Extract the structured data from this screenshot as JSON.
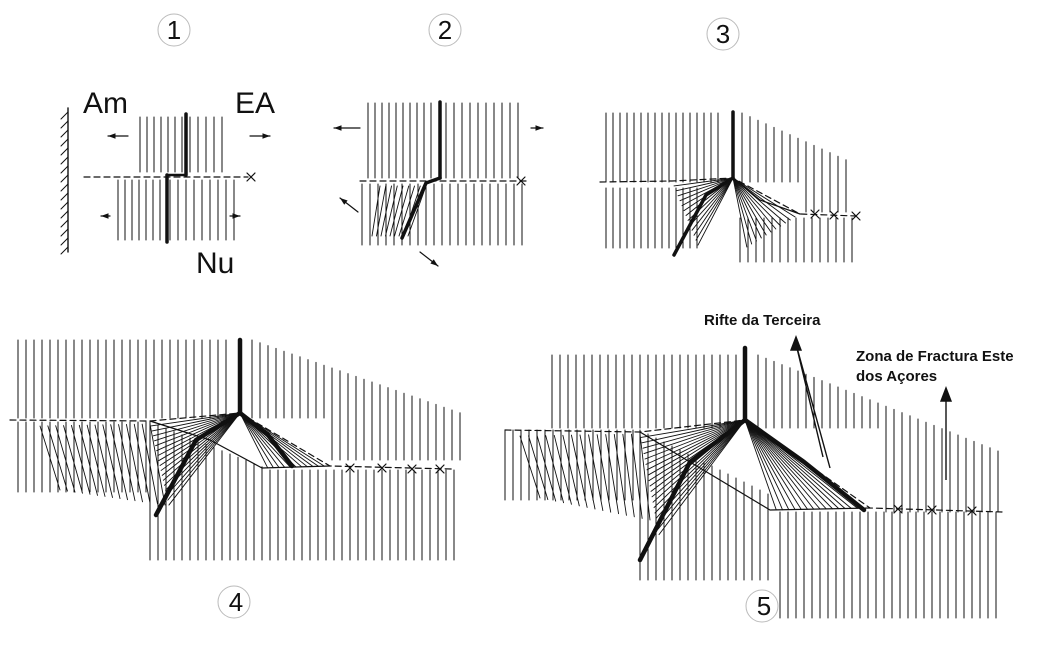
{
  "panels": [
    {
      "number": "1"
    },
    {
      "number": "2"
    },
    {
      "number": "3"
    },
    {
      "number": "4"
    },
    {
      "number": "5"
    }
  ],
  "plate_labels": {
    "american": "Am",
    "eurasian": "EA",
    "nubian": "Nu"
  },
  "annotations": {
    "terceira_rift": "Rifte da Terceira",
    "fracture_zone_line1": "Zona de Fractura Este",
    "fracture_zone_line2": "dos Açores"
  },
  "colors": {
    "ink": "#111111",
    "background": "#ffffff"
  }
}
